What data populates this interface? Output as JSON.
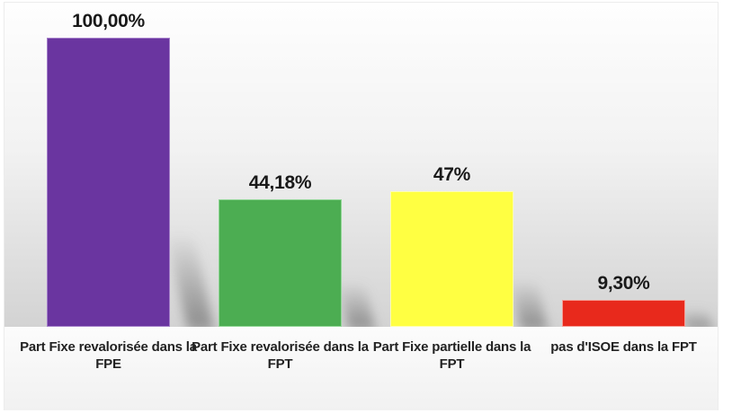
{
  "chart_data": {
    "type": "bar",
    "title": "",
    "xlabel": "",
    "ylabel": "",
    "ylim": [
      0,
      100
    ],
    "grid": false,
    "legend": null,
    "data_labels_position": "above-bar",
    "categories": [
      "Part Fixe revalorisée dans la FPE",
      "Part Fixe revalorisée dans la FPT",
      "Part Fixe partielle dans la FPT",
      "pas d'ISOE dans la FPT"
    ],
    "values": [
      100.0,
      44.18,
      47.0,
      9.3
    ],
    "value_labels": [
      "100,00%",
      "44,18%",
      "47%",
      "9,30%"
    ],
    "colors": [
      "#6A35A0",
      "#4CAD52",
      "#FFFF42",
      "#E8291C"
    ],
    "border_colors": [
      "#A47FC9",
      "#8FD694",
      "#FFFFA8",
      "#F49C94"
    ]
  }
}
